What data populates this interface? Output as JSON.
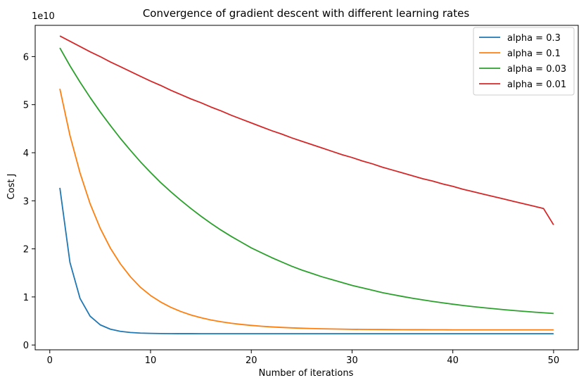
{
  "chart_data": {
    "type": "line",
    "title": "Convergence of gradient descent with different learning rates",
    "xlabel": "Number of iterations",
    "ylabel": "Cost J",
    "y_offset_label": "1e10",
    "xlim": [
      -1.45,
      52.45
    ],
    "ylim": [
      -1.0,
      66.5
    ],
    "y_scale_note": "values in units of 1e10",
    "xticks": [
      0,
      10,
      20,
      30,
      40,
      50
    ],
    "yticks": [
      0,
      1,
      2,
      3,
      4,
      5,
      6
    ],
    "grid": false,
    "legend_position": "top-right",
    "series": [
      {
        "name": "alpha = 0.3",
        "color": "#1f77b4",
        "x": [
          1,
          2,
          3,
          4,
          5,
          6,
          7,
          8,
          9,
          10,
          11,
          12,
          13,
          14,
          15,
          16,
          17,
          18,
          19,
          20,
          21,
          22,
          23,
          24,
          25,
          26,
          27,
          28,
          29,
          30,
          31,
          32,
          33,
          34,
          35,
          36,
          37,
          38,
          39,
          40,
          41,
          42,
          43,
          44,
          45,
          46,
          47,
          48,
          49,
          50
        ],
        "values": [
          3.27,
          1.72,
          0.97,
          0.6,
          0.42,
          0.33,
          0.285,
          0.26,
          0.248,
          0.242,
          0.239,
          0.237,
          0.236,
          0.236,
          0.2355,
          0.2355,
          0.2355,
          0.2355,
          0.2355,
          0.2355,
          0.2355,
          0.2355,
          0.2355,
          0.2355,
          0.2355,
          0.2355,
          0.2355,
          0.2355,
          0.2355,
          0.2355,
          0.2355,
          0.2355,
          0.2355,
          0.2355,
          0.2355,
          0.2355,
          0.2355,
          0.2355,
          0.2355,
          0.2355,
          0.2355,
          0.2355,
          0.2355,
          0.2355,
          0.2355,
          0.2355,
          0.2355,
          0.2355,
          0.2355,
          0.2355
        ]
      },
      {
        "name": "alpha = 0.1",
        "color": "#ff7f0e",
        "x": [
          1,
          2,
          3,
          4,
          5,
          6,
          7,
          8,
          9,
          10,
          11,
          12,
          13,
          14,
          15,
          16,
          17,
          18,
          19,
          20,
          21,
          22,
          23,
          24,
          25,
          26,
          27,
          28,
          29,
          30,
          31,
          32,
          33,
          34,
          35,
          36,
          37,
          38,
          39,
          40,
          41,
          42,
          43,
          44,
          45,
          46,
          47,
          48,
          49,
          50
        ],
        "values": [
          5.33,
          4.36,
          3.58,
          2.94,
          2.43,
          2.02,
          1.69,
          1.42,
          1.2,
          1.03,
          0.895,
          0.785,
          0.697,
          0.625,
          0.568,
          0.521,
          0.484,
          0.453,
          0.428,
          0.408,
          0.391,
          0.377,
          0.366,
          0.357,
          0.349,
          0.343,
          0.338,
          0.334,
          0.33,
          0.327,
          0.325,
          0.323,
          0.322,
          0.32,
          0.319,
          0.318,
          0.318,
          0.317,
          0.317,
          0.316,
          0.316,
          0.316,
          0.315,
          0.315,
          0.315,
          0.315,
          0.315,
          0.315,
          0.315,
          0.315
        ]
      },
      {
        "name": "alpha = 0.03",
        "color": "#2ca02c",
        "x": [
          1,
          2,
          3,
          4,
          5,
          6,
          7,
          8,
          9,
          10,
          11,
          12,
          13,
          14,
          15,
          16,
          17,
          18,
          19,
          20,
          21,
          22,
          23,
          24,
          25,
          26,
          27,
          28,
          29,
          30,
          31,
          32,
          33,
          34,
          35,
          36,
          37,
          38,
          39,
          40,
          41,
          42,
          43,
          44,
          45,
          46,
          47,
          48,
          49,
          50
        ],
        "values": [
          6.18,
          5.81,
          5.47,
          5.15,
          4.85,
          4.57,
          4.3,
          4.05,
          3.81,
          3.59,
          3.38,
          3.19,
          3.01,
          2.84,
          2.68,
          2.53,
          2.39,
          2.26,
          2.14,
          2.02,
          1.92,
          1.82,
          1.73,
          1.64,
          1.56,
          1.49,
          1.42,
          1.36,
          1.3,
          1.24,
          1.19,
          1.14,
          1.09,
          1.05,
          1.01,
          0.973,
          0.939,
          0.907,
          0.877,
          0.849,
          0.823,
          0.799,
          0.777,
          0.756,
          0.736,
          0.718,
          0.701,
          0.685,
          0.67,
          0.656
        ]
      },
      {
        "name": "alpha = 0.01",
        "color": "#d62728",
        "x": [
          1,
          2,
          3,
          4,
          5,
          6,
          7,
          8,
          9,
          10,
          11,
          12,
          13,
          14,
          15,
          16,
          17,
          18,
          19,
          20,
          21,
          22,
          23,
          24,
          25,
          26,
          27,
          28,
          29,
          30,
          31,
          32,
          33,
          34,
          35,
          36,
          37,
          38,
          39,
          40,
          41,
          42,
          43,
          44,
          45,
          46,
          47,
          48,
          49,
          50
        ],
        "values": [
          6.43,
          6.32,
          6.21,
          6.1,
          6.0,
          5.89,
          5.79,
          5.69,
          5.59,
          5.49,
          5.4,
          5.3,
          5.21,
          5.12,
          5.04,
          4.95,
          4.87,
          4.78,
          4.7,
          4.62,
          4.54,
          4.46,
          4.39,
          4.31,
          4.24,
          4.17,
          4.1,
          4.03,
          3.96,
          3.9,
          3.83,
          3.77,
          3.7,
          3.64,
          3.58,
          3.52,
          3.46,
          3.41,
          3.35,
          3.3,
          3.24,
          3.19,
          3.14,
          3.09,
          3.04,
          2.99,
          2.94,
          2.89,
          2.84,
          2.5
        ]
      }
    ]
  }
}
